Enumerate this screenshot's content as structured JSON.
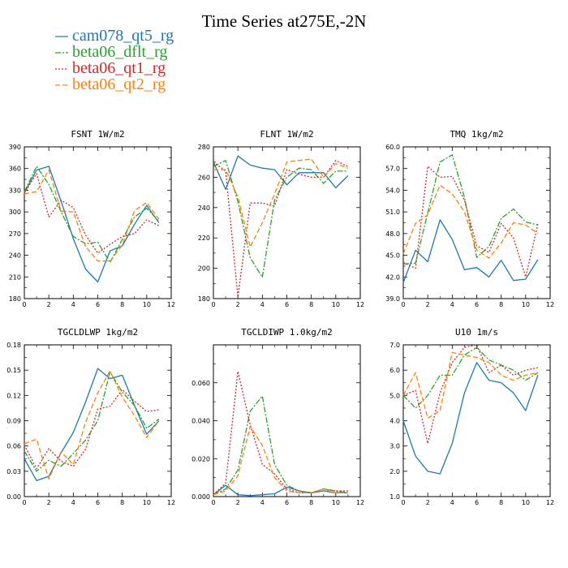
{
  "title": "Time Series at275E,-2N",
  "legend": [
    {
      "name": "cam078_qt5_rg",
      "color": "#1f77b4",
      "dash": ""
    },
    {
      "name": "beta06_dflt_rg",
      "color": "#2ca02c",
      "dash": "7,2,2,2"
    },
    {
      "name": "beta06_qt1_rg",
      "color": "#d62728",
      "dash": "2,2"
    },
    {
      "name": "beta06_qt2_rg",
      "color": "#ff7f0e",
      "dash": "6,3"
    }
  ],
  "chart_data": [
    {
      "type": "line",
      "title": "FSNT  1W/m2",
      "x": [
        0,
        1,
        2,
        3,
        4,
        5,
        6,
        7,
        8,
        9,
        10,
        11
      ],
      "xlim": [
        0,
        12
      ],
      "xticks": [
        0,
        2,
        4,
        6,
        8,
        10,
        12
      ],
      "xtick_labels": [
        "0",
        "2",
        "4",
        "6",
        "8",
        "10",
        "12"
      ],
      "ylim": [
        180,
        390
      ],
      "yticks": [
        180,
        210,
        240,
        270,
        300,
        330,
        360,
        390
      ],
      "ytick_labels": [
        "180",
        "210",
        "240",
        "270",
        "300",
        "330",
        "360",
        "390"
      ],
      "series": [
        {
          "name": "cam078_qt5_rg",
          "values": [
            326,
            358,
            363,
            315,
            263,
            221,
            203,
            246,
            253,
            283,
            309,
            285
          ]
        },
        {
          "name": "beta06_dflt_rg",
          "values": [
            328,
            363,
            338,
            300,
            266,
            256,
            258,
            230,
            262,
            293,
            305,
            287
          ]
        },
        {
          "name": "beta06_qt1_rg",
          "values": [
            326,
            353,
            293,
            316,
            306,
            268,
            243,
            255,
            266,
            270,
            289,
            281
          ]
        },
        {
          "name": "beta06_qt2_rg",
          "values": [
            325,
            328,
            358,
            301,
            300,
            252,
            232,
            232,
            254,
            302,
            313,
            290
          ]
        }
      ]
    },
    {
      "type": "line",
      "title": "FLNT  1W/m2",
      "x": [
        0,
        1,
        2,
        3,
        4,
        5,
        6,
        7,
        8,
        9,
        10,
        11
      ],
      "xlim": [
        0,
        12
      ],
      "xticks": [
        0,
        2,
        4,
        6,
        8,
        10,
        12
      ],
      "xtick_labels": [
        "0",
        "2",
        "4",
        "6",
        "8",
        "10",
        "12"
      ],
      "ylim": [
        180,
        280
      ],
      "yticks": [
        180,
        200,
        220,
        240,
        260,
        280
      ],
      "ytick_labels": [
        "180",
        "200",
        "220",
        "240",
        "260",
        "280"
      ],
      "series": [
        {
          "name": "cam078_qt5_rg",
          "values": [
            270,
            252,
            274,
            268,
            266,
            265,
            255,
            263,
            263,
            263,
            253,
            261
          ]
        },
        {
          "name": "beta06_dflt_rg",
          "values": [
            267,
            271,
            244,
            207,
            194,
            245,
            260,
            266,
            265,
            256,
            264,
            264
          ]
        },
        {
          "name": "beta06_qt1_rg",
          "values": [
            270,
            264,
            181,
            243,
            243,
            241,
            265,
            262,
            260,
            260,
            271,
            267
          ]
        },
        {
          "name": "beta06_qt2_rg",
          "values": [
            265,
            265,
            247,
            214,
            230,
            249,
            270,
            271,
            272,
            260,
            269,
            266
          ]
        }
      ]
    },
    {
      "type": "line",
      "title": "TMQ  1kg/m2",
      "x": [
        0,
        1,
        2,
        3,
        4,
        5,
        6,
        7,
        8,
        9,
        10,
        11
      ],
      "xlim": [
        0,
        12
      ],
      "xticks": [
        0,
        2,
        4,
        6,
        8,
        10,
        12
      ],
      "xtick_labels": [
        "0",
        "2",
        "4",
        "6",
        "8",
        "10",
        "12"
      ],
      "ylim": [
        39,
        60
      ],
      "yticks": [
        39,
        42,
        45,
        48,
        51,
        54,
        57,
        60
      ],
      "ytick_labels": [
        "39.0",
        "42.0",
        "45.0",
        "48.0",
        "51.0",
        "54.0",
        "57.0",
        "60.0"
      ],
      "series": [
        {
          "name": "cam078_qt5_rg",
          "values": [
            41.2,
            45.7,
            44.1,
            49.9,
            47.2,
            43.0,
            43.3,
            42.0,
            44.3,
            41.5,
            41.7,
            44.4
          ]
        },
        {
          "name": "beta06_dflt_rg",
          "values": [
            43.8,
            43.9,
            50.9,
            57.9,
            58.9,
            53.0,
            44.7,
            46.2,
            50.1,
            51.4,
            49.6,
            49.2
          ]
        },
        {
          "name": "beta06_qt1_rg",
          "values": [
            44.0,
            43.2,
            57.3,
            55.8,
            55.9,
            52.6,
            46.3,
            45.4,
            49.4,
            47.4,
            42.0,
            49.3
          ]
        },
        {
          "name": "beta06_qt2_rg",
          "values": [
            45.2,
            49.4,
            50.6,
            54.7,
            53.5,
            51.0,
            45.7,
            44.6,
            46.7,
            49.5,
            49.2,
            48.0
          ]
        }
      ]
    },
    {
      "type": "line",
      "title": "TGCLDLWP  1kg/m2",
      "x": [
        0,
        1,
        2,
        3,
        4,
        5,
        6,
        7,
        8,
        9,
        10,
        11
      ],
      "xlim": [
        0,
        12
      ],
      "xticks": [
        0,
        2,
        4,
        6,
        8,
        10,
        12
      ],
      "xtick_labels": [
        "0",
        "2",
        "4",
        "6",
        "8",
        "10",
        "12"
      ],
      "ylim": [
        0,
        0.18
      ],
      "yticks": [
        0,
        0.03,
        0.06,
        0.09,
        0.12,
        0.15,
        0.18
      ],
      "ytick_labels": [
        "0.00",
        "0.03",
        "0.06",
        "0.09",
        "0.12",
        "0.15",
        "0.18"
      ],
      "series": [
        {
          "name": "cam078_qt5_rg",
          "values": [
            0.045,
            0.019,
            0.024,
            0.052,
            0.076,
            0.112,
            0.152,
            0.14,
            0.144,
            0.108,
            0.074,
            0.09
          ]
        },
        {
          "name": "beta06_dflt_rg",
          "values": [
            0.054,
            0.03,
            0.043,
            0.036,
            0.051,
            0.067,
            0.09,
            0.148,
            0.124,
            0.108,
            0.081,
            0.092
          ]
        },
        {
          "name": "beta06_qt1_rg",
          "values": [
            0.061,
            0.033,
            0.057,
            0.042,
            0.036,
            0.056,
            0.104,
            0.107,
            0.127,
            0.113,
            0.101,
            0.103
          ]
        },
        {
          "name": "beta06_qt2_rg",
          "values": [
            0.063,
            0.068,
            0.021,
            0.053,
            0.038,
            0.088,
            0.123,
            0.149,
            0.118,
            0.096,
            0.07,
            0.09
          ]
        }
      ]
    },
    {
      "type": "line",
      "title": "TGCLDIWP  1.0kg/m2",
      "x": [
        0,
        1,
        2,
        3,
        4,
        5,
        6,
        7,
        8,
        9,
        10,
        11
      ],
      "xlim": [
        0,
        12
      ],
      "xticks": [
        0,
        2,
        4,
        6,
        8,
        10,
        12
      ],
      "xtick_labels": [
        "0",
        "2",
        "4",
        "6",
        "8",
        "10",
        "12"
      ],
      "ylim": [
        0,
        0.08
      ],
      "yticks": [
        0,
        0.02,
        0.04,
        0.06
      ],
      "ytick_labels": [
        "0.000",
        "0.020",
        "0.040",
        "0.060"
      ],
      "series": [
        {
          "name": "cam078_qt5_rg",
          "values": [
            0.001,
            0.006,
            0.001,
            0.0005,
            0.001,
            0.0015,
            0.005,
            0.003,
            0.002,
            0.003,
            0.002,
            0.002
          ]
        },
        {
          "name": "beta06_dflt_rg",
          "values": [
            0.001,
            0.004,
            0.014,
            0.045,
            0.053,
            0.017,
            0.006,
            0.003,
            0.002,
            0.004,
            0.003,
            0.002
          ]
        },
        {
          "name": "beta06_qt1_rg",
          "values": [
            0.001,
            0.007,
            0.066,
            0.038,
            0.017,
            0.012,
            0.004,
            0.002,
            0.002,
            0.004,
            0.003,
            0.003
          ]
        },
        {
          "name": "beta06_qt2_rg",
          "values": [
            0.001,
            0.003,
            0.011,
            0.037,
            0.027,
            0.01,
            0.003,
            0.002,
            0.002,
            0.004,
            0.002,
            0.002
          ]
        }
      ]
    },
    {
      "type": "line",
      "title": "U10  1m/s",
      "x": [
        0,
        1,
        2,
        3,
        4,
        5,
        6,
        7,
        8,
        9,
        10,
        11
      ],
      "xlim": [
        0,
        12
      ],
      "xticks": [
        0,
        2,
        4,
        6,
        8,
        10,
        12
      ],
      "xtick_labels": [
        "0",
        "2",
        "4",
        "6",
        "8",
        "10",
        "12"
      ],
      "ylim": [
        1,
        7
      ],
      "yticks": [
        1,
        2,
        3,
        4,
        5,
        6,
        7
      ],
      "ytick_labels": [
        "1.0",
        "2.0",
        "3.0",
        "4.0",
        "5.0",
        "6.0",
        "7.0"
      ],
      "series": [
        {
          "name": "cam078_qt5_rg",
          "values": [
            4.0,
            2.6,
            2.0,
            1.9,
            3.1,
            5.1,
            6.3,
            5.6,
            5.5,
            5.1,
            4.4,
            5.8
          ]
        },
        {
          "name": "beta06_dflt_rg",
          "values": [
            5.0,
            4.5,
            5.0,
            5.8,
            5.8,
            6.6,
            6.9,
            6.4,
            6.2,
            6.0,
            5.6,
            5.9
          ]
        },
        {
          "name": "beta06_qt1_rg",
          "values": [
            5.0,
            5.2,
            3.1,
            5.1,
            6.3,
            6.9,
            7.0,
            5.9,
            6.2,
            5.8,
            6.0,
            6.1
          ]
        },
        {
          "name": "beta06_qt2_rg",
          "values": [
            5.0,
            5.9,
            4.1,
            4.4,
            6.7,
            6.6,
            6.5,
            6.3,
            5.8,
            5.6,
            5.8,
            5.9
          ]
        }
      ]
    }
  ]
}
